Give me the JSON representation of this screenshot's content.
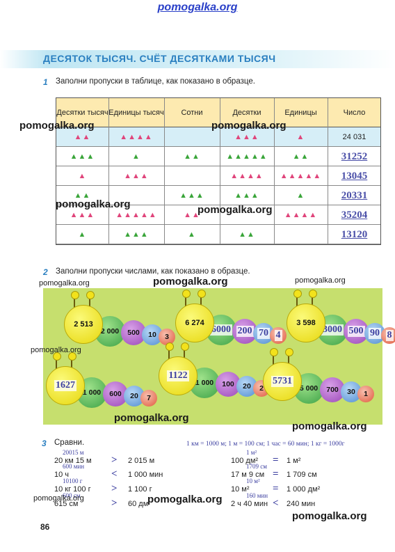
{
  "watermarks": {
    "top": "pomogalka.org",
    "mark": "pomogalka.org"
  },
  "title": "ДЕСЯТОК ТЫСЯЧ. СЧЁТ ДЕСЯТКАМИ ТЫСЯЧ",
  "task1": {
    "number": "1",
    "text": "Заполни пропуски в таблице, как показано в образце.",
    "headers": [
      "Десятки тысяч",
      "Единицы тысяч",
      "Сотни",
      "Десятки",
      "Единицы",
      "Число"
    ],
    "rows": [
      {
        "cells": [
          [
            "pink",
            2
          ],
          [
            "pink",
            4
          ],
          [
            "",
            0
          ],
          [
            "pink",
            3
          ],
          [
            "pink",
            1
          ]
        ],
        "number": "24 031",
        "sample": true
      },
      {
        "cells": [
          [
            "green",
            3
          ],
          [
            "green",
            1
          ],
          [
            "green",
            2
          ],
          [
            "green",
            5
          ],
          [
            "green",
            2
          ]
        ],
        "number": "31252",
        "sample": false
      },
      {
        "cells": [
          [
            "pink",
            1
          ],
          [
            "pink",
            3
          ],
          [
            "",
            0
          ],
          [
            "pink",
            4
          ],
          [
            "pink",
            5
          ]
        ],
        "number": "13045",
        "sample": false
      },
      {
        "cells": [
          [
            "green",
            2
          ],
          [
            "",
            0
          ],
          [
            "green",
            3
          ],
          [
            "green",
            3
          ],
          [
            "green",
            1
          ]
        ],
        "number": "20331",
        "sample": false
      },
      {
        "cells": [
          [
            "pink",
            3
          ],
          [
            "pink",
            5
          ],
          [
            "pink",
            2
          ],
          [
            "",
            0
          ],
          [
            "pink",
            4
          ]
        ],
        "number": "35204",
        "sample": false
      },
      {
        "cells": [
          [
            "green",
            1
          ],
          [
            "green",
            3
          ],
          [
            "green",
            1
          ],
          [
            "green",
            2
          ],
          [
            "",
            0
          ]
        ],
        "number": "13120",
        "sample": false
      }
    ]
  },
  "task2": {
    "number": "2",
    "text": "Заполни пропуски числами, как показано в образце.",
    "caterpillars": [
      {
        "head": "2 513",
        "parts": [
          "2 000",
          "500",
          "10",
          "3"
        ],
        "filled": []
      },
      {
        "head": "6 274",
        "parts": [
          "6000",
          "200",
          "70",
          "4"
        ],
        "filled": [
          0,
          1,
          2,
          3
        ]
      },
      {
        "head": "3 598",
        "parts": [
          "3000",
          "500",
          "90",
          "8"
        ],
        "filled": [
          0,
          1,
          2,
          3
        ]
      },
      {
        "head": "1627",
        "parts": [
          "1 000",
          "600",
          "20",
          "7"
        ],
        "filled": [
          "head"
        ]
      },
      {
        "head": "1122",
        "parts": [
          "1 000",
          "100",
          "20",
          "2"
        ],
        "filled": [
          "head"
        ]
      },
      {
        "head": "5731",
        "parts": [
          "5 000",
          "700",
          "30",
          "1"
        ],
        "filled": [
          "head"
        ]
      }
    ]
  },
  "task3": {
    "number": "3",
    "text": "Сравни.",
    "units_note": "1 км = 1000 м; 1 м = 100 см; 1 час = 60 мин; 1 кг = 1000г",
    "left": [
      {
        "note": "20015 м",
        "expr": "20 км 15 м",
        "sign": ">",
        "rhs": "2 015 м"
      },
      {
        "note": "600 мин",
        "expr": "10 ч",
        "sign": "<",
        "rhs": "1 000 мин"
      },
      {
        "note": "10100 г",
        "expr": "10 кг 100 г",
        "sign": ">",
        "rhs": "1 100 г"
      },
      {
        "note": "600 см",
        "expr": "615 см",
        "sign": ">",
        "rhs": "60 дм"
      }
    ],
    "right": [
      {
        "note": "1 м²",
        "expr": "100 дм²",
        "sign": "=",
        "rhs": "1 м²"
      },
      {
        "note": "1709 см",
        "expr": "17 м 9 см",
        "sign": "=",
        "rhs": "1 709 см"
      },
      {
        "note": "10 м²",
        "expr": "10 м²",
        "sign": "=",
        "rhs": "1 000 дм²"
      },
      {
        "note": "160 мин",
        "expr": "2 ч 40 мин",
        "sign": "<",
        "rhs": "240 мин"
      }
    ]
  },
  "page_number": "86",
  "colors": {
    "pink": "#e0457b",
    "green": "#3aa53a",
    "blue_title": "#2a7fc0",
    "handwriting": "#3c3fa0"
  }
}
